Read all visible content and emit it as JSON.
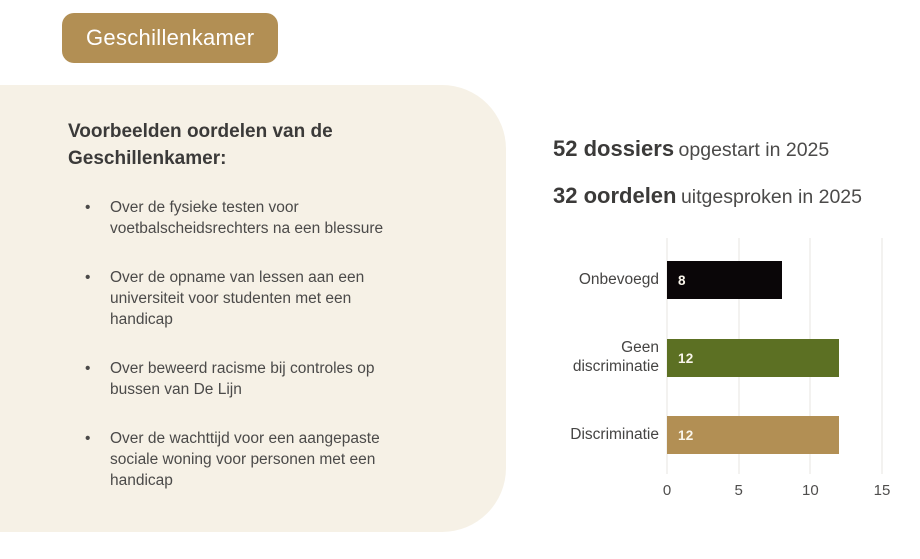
{
  "badge": {
    "label": "Geschillenkamer"
  },
  "panel": {
    "heading": "Voorbeelden oordelen van de Geschillenkamer:",
    "bullets": [
      "Over de fysieke testen voor voetbalscheidsrechters na een blessure",
      "Over de opname van lessen aan een universiteit voor studenten met een handicap",
      "Over beweerd racisme bij controles op bussen van De Lijn",
      "Over de wachttijd voor een aangepaste sociale woning voor personen met een handicap"
    ]
  },
  "stats": [
    {
      "value": "52 dossiers",
      "rest": "opgestart in 2025"
    },
    {
      "value": "32 oordelen",
      "rest": "uitgesproken in 2025"
    }
  ],
  "chart_data": {
    "type": "bar",
    "orientation": "horizontal",
    "title": "",
    "xlabel": "",
    "ylabel": "",
    "categories": [
      "Onbevoegd",
      "Geen discriminatie",
      "Discriminatie"
    ],
    "values": [
      8,
      12,
      12
    ],
    "value_labels": [
      "8",
      "12",
      "12"
    ],
    "bar_colors": [
      "#0a0608",
      "#5c7023",
      "#b28f54"
    ],
    "xlim": [
      0,
      15
    ],
    "x_ticks": [
      0,
      5,
      10,
      15
    ],
    "grid": true,
    "legend": false
  },
  "colors": {
    "badge_bg": "#b28f54",
    "panel_bg": "#f6f1e6",
    "heading_text": "#3b3a39",
    "body_text": "#4b4a49",
    "gridline": "#e7e5e2",
    "bar_value_text": "#faf6ec"
  }
}
